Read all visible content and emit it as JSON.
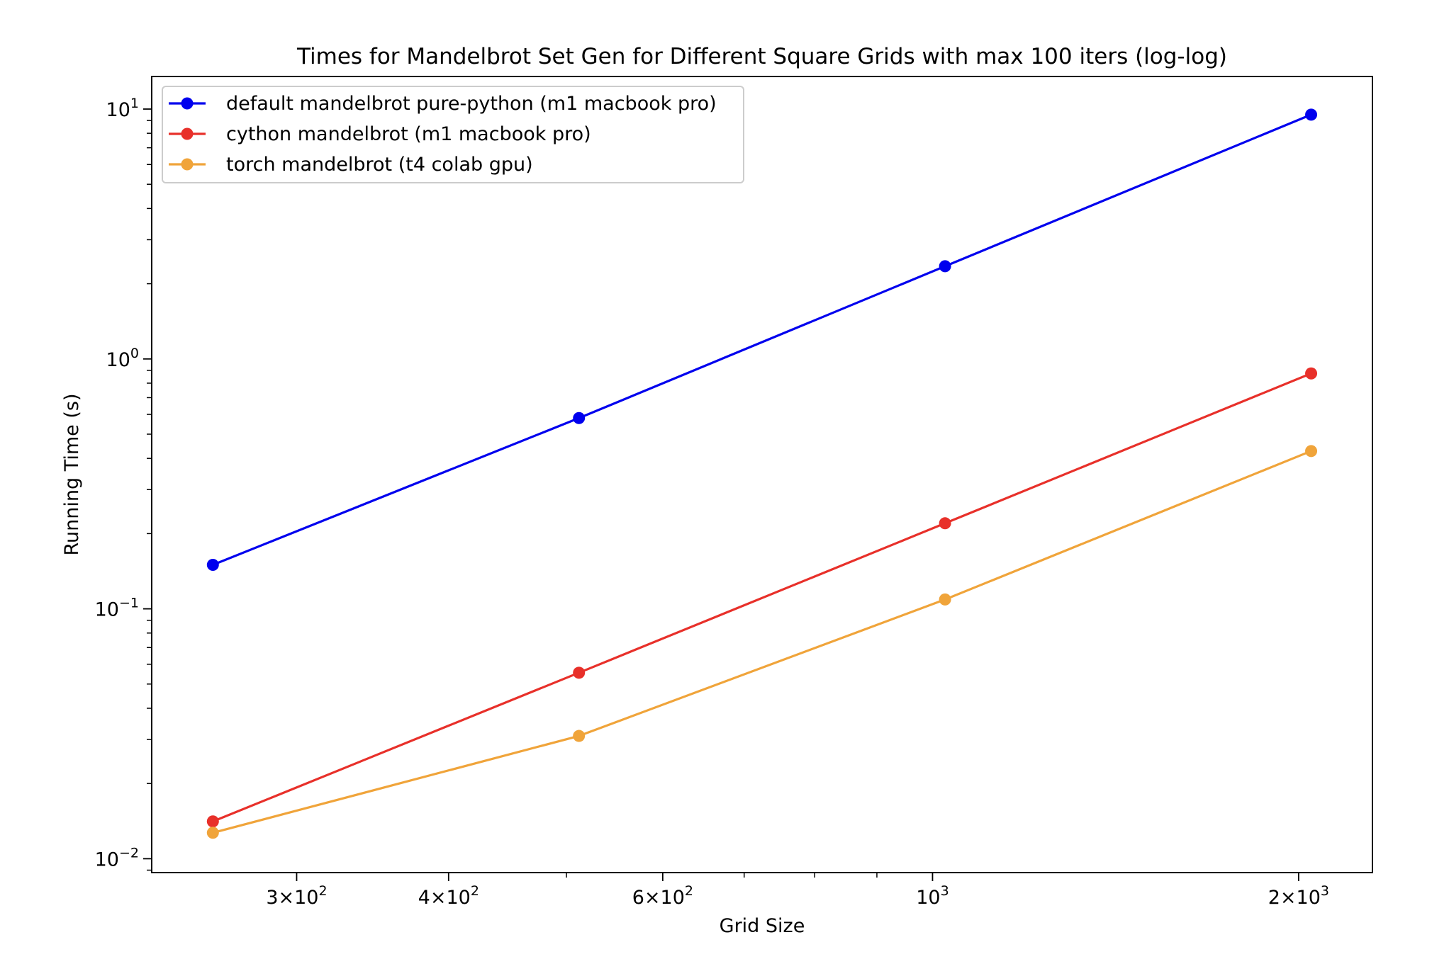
{
  "chart_data": {
    "type": "line",
    "title": "Times for Mandelbrot Set Gen for Different Square Grids with max 100 iters (log-log)",
    "xlabel": "Grid Size",
    "ylabel": "Running Time (s)",
    "xscale": "log",
    "yscale": "log",
    "xlim": [
      228,
      2300
    ],
    "ylim": [
      0.0088,
      13.5
    ],
    "grid": false,
    "legend_position": "top-left",
    "x": [
      256,
      512,
      1024,
      2048
    ],
    "x_ticks": [
      {
        "value": 300,
        "base": "3",
        "exp": "2",
        "label": "3×10²"
      },
      {
        "value": 400,
        "base": "4",
        "exp": "2",
        "label": "4×10²"
      },
      {
        "value": 600,
        "base": "6",
        "exp": "2",
        "label": "6×10²"
      },
      {
        "value": 1000,
        "base": "",
        "exp": "3",
        "label": "10³"
      },
      {
        "value": 2000,
        "base": "2",
        "exp": "3",
        "label": "2×10³"
      }
    ],
    "y_ticks": [
      {
        "value": 0.01,
        "exp": "−2",
        "label": "10⁻²"
      },
      {
        "value": 0.1,
        "exp": "−1",
        "label": "10⁻¹"
      },
      {
        "value": 1,
        "exp": "0",
        "label": "10⁰"
      },
      {
        "value": 10,
        "exp": "1",
        "label": "10¹"
      }
    ],
    "series": [
      {
        "name": "default mandelbrot pure-python (m1 macbook pro)",
        "color": "#0000ee",
        "values": [
          0.15,
          0.58,
          2.35,
          9.5
        ]
      },
      {
        "name": "cython mandelbrot (m1 macbook pro)",
        "color": "#e8302a",
        "values": [
          0.0141,
          0.0555,
          0.22,
          0.875
        ]
      },
      {
        "name": "torch mandelbrot (t4 colab gpu)",
        "color": "#f0a43a",
        "values": [
          0.0127,
          0.031,
          0.109,
          0.428
        ]
      }
    ]
  }
}
